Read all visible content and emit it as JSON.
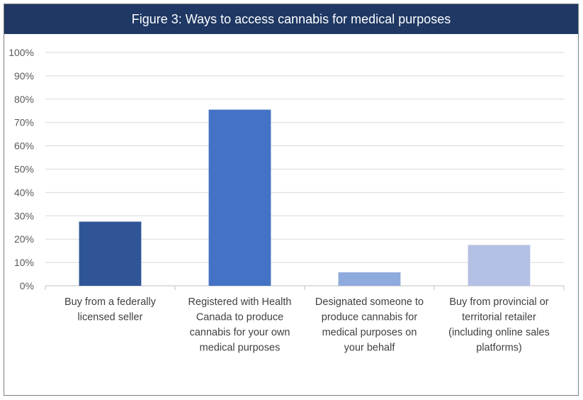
{
  "chart_data": {
    "type": "bar",
    "title": "Figure 3: Ways to access cannabis for medical purposes",
    "xlabel": "",
    "ylabel": "",
    "ylim": [
      0,
      100
    ],
    "y_ticks": [
      "0%",
      "10%",
      "20%",
      "30%",
      "40%",
      "50%",
      "60%",
      "70%",
      "80%",
      "90%",
      "100%"
    ],
    "categories": [
      [
        "Buy from a federally",
        "licensed seller"
      ],
      [
        "Registered with Health",
        "Canada to produce",
        "cannabis for your own",
        "medical purposes"
      ],
      [
        "Designated someone to",
        "produce cannabis for",
        "medical purposes on",
        "your behalf"
      ],
      [
        "Buy from provincial or",
        "territorial retailer",
        "(including online sales",
        "platforms)"
      ]
    ],
    "values": [
      27.5,
      75.5,
      5.8,
      17.5
    ],
    "bar_colors": [
      "#2f5597",
      "#4472c4",
      "#8faadc",
      "#b4c0e4"
    ],
    "grid": true,
    "gridline_color": "#d9d9d9",
    "legend": "none"
  }
}
